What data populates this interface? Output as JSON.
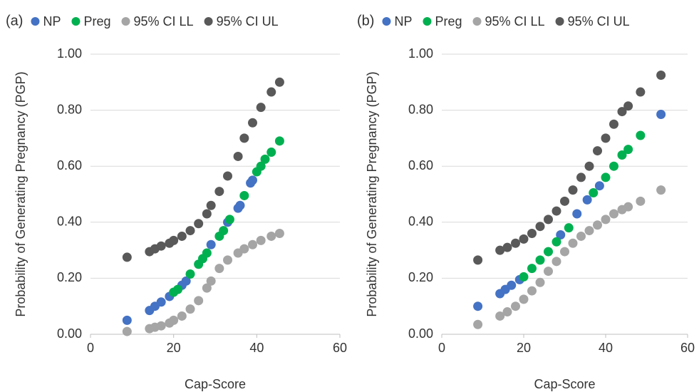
{
  "chart_data": [
    {
      "type": "scatter",
      "panel_label": "(a)",
      "x_label": "Cap-Score",
      "y_label": "Probability of Generating Pregnancy (PGP)",
      "xlim": [
        0,
        60
      ],
      "xticks": [
        0,
        20,
        40,
        60
      ],
      "ylim": [
        0,
        1
      ],
      "yticks": [
        {
          "value": 0,
          "label": "0.00"
        },
        {
          "value": 0.2,
          "label": "0.20"
        },
        {
          "value": 0.4,
          "label": "0.40"
        },
        {
          "value": 0.6,
          "label": "0.60"
        },
        {
          "value": 0.8,
          "label": "0.80"
        },
        {
          "value": 1,
          "label": "1.00"
        }
      ],
      "grid": true,
      "series": [
        {
          "name": "NP",
          "color": "#4472c4",
          "x": [
            8.8,
            14.2,
            15.5,
            17,
            19,
            22,
            23,
            29,
            33,
            35.5,
            36,
            38.5,
            39
          ],
          "values": [
            0.05,
            0.085,
            0.1,
            0.115,
            0.135,
            0.175,
            0.19,
            0.32,
            0.4,
            0.45,
            0.46,
            0.54,
            0.55
          ]
        },
        {
          "name": "Preg",
          "color": "#00b050",
          "x": [
            20,
            21,
            24,
            26,
            27,
            28,
            31,
            32,
            33.5,
            37,
            40,
            41,
            42,
            43.5,
            45.5
          ],
          "values": [
            0.15,
            0.16,
            0.215,
            0.25,
            0.27,
            0.29,
            0.35,
            0.37,
            0.41,
            0.495,
            0.58,
            0.6,
            0.625,
            0.65,
            0.69
          ]
        },
        {
          "name": "95% CI LL",
          "color": "#a5a5a5",
          "x": [
            8.8,
            14.2,
            15.5,
            17,
            19,
            20,
            22,
            24,
            26,
            28,
            29,
            31,
            33,
            35.5,
            37,
            39,
            41,
            43.5,
            45.5
          ],
          "values": [
            0.01,
            0.02,
            0.025,
            0.03,
            0.04,
            0.05,
            0.065,
            0.09,
            0.12,
            0.165,
            0.19,
            0.235,
            0.265,
            0.29,
            0.305,
            0.32,
            0.335,
            0.35,
            0.36
          ]
        },
        {
          "name": "95% CI UL",
          "color": "#595959",
          "x": [
            8.8,
            14.2,
            15.5,
            17,
            19,
            20,
            22,
            24,
            26,
            28,
            29,
            31,
            33,
            35.5,
            37,
            39,
            41,
            43.5,
            45.5
          ],
          "values": [
            0.275,
            0.295,
            0.305,
            0.315,
            0.325,
            0.335,
            0.35,
            0.37,
            0.395,
            0.43,
            0.46,
            0.51,
            0.565,
            0.635,
            0.7,
            0.755,
            0.81,
            0.865,
            0.9
          ]
        }
      ]
    },
    {
      "type": "scatter",
      "panel_label": "(b)",
      "x_label": "Cap-Score",
      "y_label": "Probability of Generating Pregnancy (PGP)",
      "xlim": [
        0,
        60
      ],
      "xticks": [
        0,
        20,
        40,
        60
      ],
      "ylim": [
        0,
        1
      ],
      "yticks": [
        {
          "value": 0,
          "label": "0.00"
        },
        {
          "value": 0.2,
          "label": "0.20"
        },
        {
          "value": 0.4,
          "label": "0.40"
        },
        {
          "value": 0.6,
          "label": "0.60"
        },
        {
          "value": 0.8,
          "label": "0.80"
        },
        {
          "value": 1,
          "label": "1.00"
        }
      ],
      "grid": true,
      "series": [
        {
          "name": "NP",
          "color": "#4472c4",
          "x": [
            8.8,
            14.2,
            15.5,
            17,
            19,
            29,
            33,
            35.5,
            38.5,
            53.5
          ],
          "values": [
            0.1,
            0.145,
            0.16,
            0.175,
            0.195,
            0.355,
            0.43,
            0.48,
            0.53,
            0.785
          ]
        },
        {
          "name": "Preg",
          "color": "#00b050",
          "x": [
            20,
            22,
            24,
            26,
            28,
            31,
            37,
            40,
            42,
            44,
            45.5,
            48.5
          ],
          "values": [
            0.205,
            0.235,
            0.265,
            0.295,
            0.33,
            0.38,
            0.505,
            0.56,
            0.6,
            0.64,
            0.66,
            0.71
          ]
        },
        {
          "name": "95% CI LL",
          "color": "#a5a5a5",
          "x": [
            8.8,
            14.2,
            16,
            18,
            20,
            22,
            24,
            26,
            28,
            30,
            32,
            34,
            36,
            38,
            40,
            42,
            44,
            45.5,
            48.5,
            53.5
          ],
          "values": [
            0.035,
            0.065,
            0.08,
            0.1,
            0.125,
            0.155,
            0.185,
            0.225,
            0.26,
            0.295,
            0.325,
            0.35,
            0.37,
            0.39,
            0.41,
            0.43,
            0.445,
            0.455,
            0.475,
            0.515
          ]
        },
        {
          "name": "95% CI UL",
          "color": "#595959",
          "x": [
            8.8,
            14.2,
            16,
            18,
            20,
            22,
            24,
            26,
            28,
            30,
            32,
            34,
            36,
            38,
            40,
            42,
            44,
            45.5,
            48.5,
            53.5
          ],
          "values": [
            0.265,
            0.3,
            0.31,
            0.325,
            0.34,
            0.36,
            0.385,
            0.41,
            0.44,
            0.475,
            0.515,
            0.56,
            0.6,
            0.655,
            0.7,
            0.75,
            0.795,
            0.815,
            0.865,
            0.925
          ]
        }
      ]
    }
  ]
}
